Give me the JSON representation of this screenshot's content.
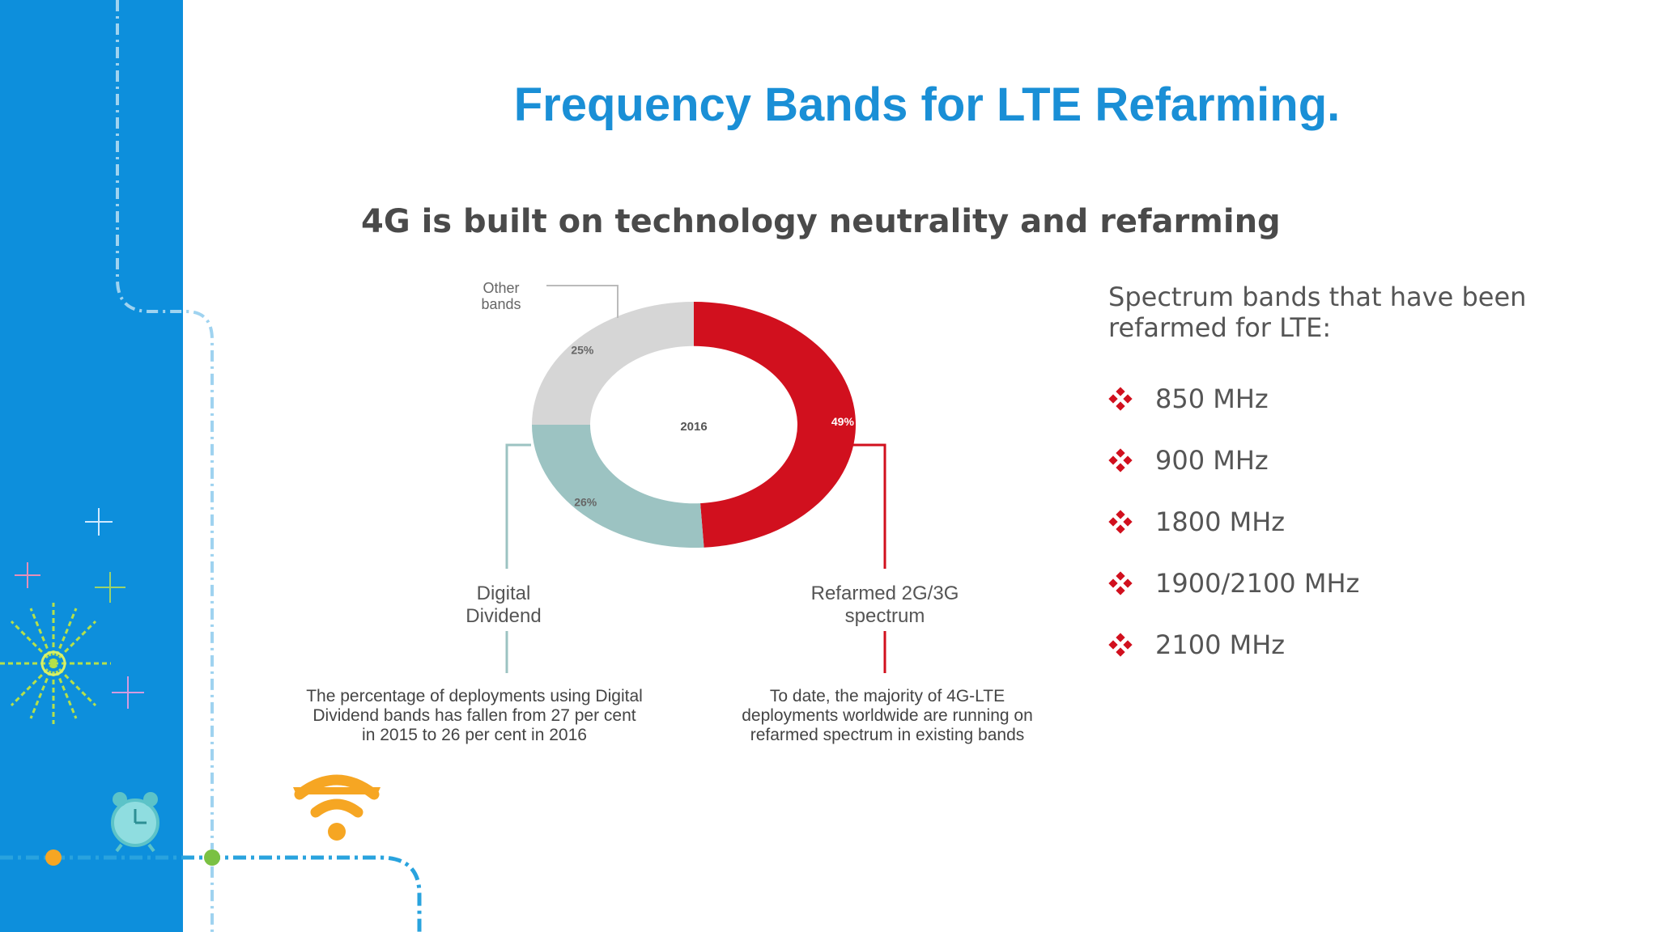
{
  "slide": {
    "title": "Frequency Bands for LTE Refarming."
  },
  "infographic": {
    "title": "4G is built on technology neutrality and refarming"
  },
  "chart_data": {
    "type": "pie",
    "center_label": "2016",
    "categories": [
      "Refarmed 2G/3G spectrum",
      "Digital Dividend",
      "Other bands"
    ],
    "values": [
      49,
      26,
      25
    ],
    "value_labels": [
      "49%",
      "26%",
      "25%"
    ],
    "colors": [
      "#d1101e",
      "#9cc3c2",
      "#d6d6d6"
    ],
    "legend": {
      "refarmed": "Refarmed 2G/3G\nspectrum",
      "digital_dividend": "Digital\nDividend",
      "other": "Other\nbands"
    }
  },
  "notes": {
    "digital_dividend": "The percentage of deployments using Digital Dividend bands has fallen from 27 per cent in 2015 to 26 per cent in 2016",
    "refarmed": "To date, the majority of 4G-LTE deployments worldwide are running on refarmed spectrum in existing bands"
  },
  "bands_panel": {
    "heading": "Spectrum bands that have been\nrefarmed for LTE:",
    "bullet_icon": "four-diamond-bullet-icon",
    "bullet_color": "#d1101e",
    "items": [
      "850 MHz",
      "900 MHz",
      "1800 MHz",
      "1900/2100 MHz",
      "2100 MHz"
    ]
  },
  "theme": {
    "sidebar_color": "#0d8fdc",
    "title_color": "#1a8fd6"
  }
}
